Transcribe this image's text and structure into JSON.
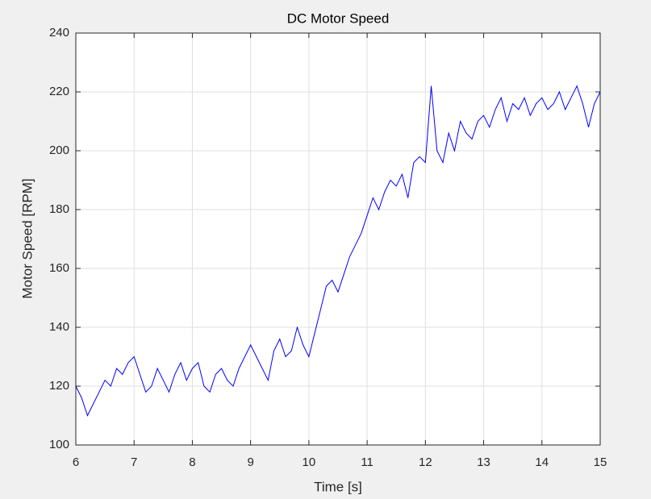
{
  "chart_data": {
    "type": "line",
    "title": "DC Motor Speed",
    "xlabel": "Time [s]",
    "ylabel": "Motor Speed [RPM]",
    "x": [
      6.0,
      6.1,
      6.2,
      6.3,
      6.4,
      6.5,
      6.6,
      6.7,
      6.8,
      6.9,
      7.0,
      7.1,
      7.2,
      7.3,
      7.4,
      7.5,
      7.6,
      7.7,
      7.8,
      7.9,
      8.0,
      8.1,
      8.2,
      8.3,
      8.4,
      8.5,
      8.6,
      8.7,
      8.8,
      8.9,
      9.0,
      9.1,
      9.2,
      9.3,
      9.4,
      9.5,
      9.6,
      9.7,
      9.8,
      9.9,
      10.0,
      10.1,
      10.2,
      10.3,
      10.4,
      10.5,
      10.6,
      10.7,
      10.8,
      10.9,
      11.0,
      11.1,
      11.2,
      11.3,
      11.4,
      11.5,
      11.6,
      11.7,
      11.8,
      11.9,
      12.0,
      12.1,
      12.2,
      12.3,
      12.4,
      12.5,
      12.6,
      12.7,
      12.8,
      12.9,
      13.0,
      13.1,
      13.2,
      13.3,
      13.4,
      13.5,
      13.6,
      13.7,
      13.8,
      13.9,
      14.0,
      14.1,
      14.2,
      14.3,
      14.4,
      14.5,
      14.6,
      14.7,
      14.8,
      14.9,
      15.0
    ],
    "series": [
      {
        "name": "Motor Speed",
        "color": "#0000ff",
        "values": [
          120,
          116,
          110,
          114,
          118,
          122,
          120,
          126,
          124,
          128,
          130,
          124,
          118,
          120,
          126,
          122,
          118,
          124,
          128,
          122,
          126,
          128,
          120,
          118,
          124,
          126,
          122,
          120,
          126,
          130,
          134,
          130,
          126,
          122,
          132,
          136,
          130,
          132,
          140,
          134,
          130,
          138,
          146,
          154,
          156,
          152,
          158,
          164,
          168,
          172,
          178,
          184,
          180,
          186,
          190,
          188,
          192,
          184,
          196,
          198,
          196,
          222,
          200,
          196,
          206,
          200,
          210,
          206,
          204,
          210,
          212,
          208,
          214,
          218,
          210,
          216,
          214,
          218,
          212,
          216,
          218,
          214,
          216,
          220,
          214,
          218,
          222,
          216,
          208,
          216,
          220
        ]
      }
    ],
    "xlim": [
      6,
      15
    ],
    "ylim": [
      100,
      240
    ],
    "xticks": [
      6,
      7,
      8,
      9,
      10,
      11,
      12,
      13,
      14,
      15
    ],
    "yticks": [
      100,
      120,
      140,
      160,
      180,
      200,
      220,
      240
    ],
    "grid": true
  }
}
